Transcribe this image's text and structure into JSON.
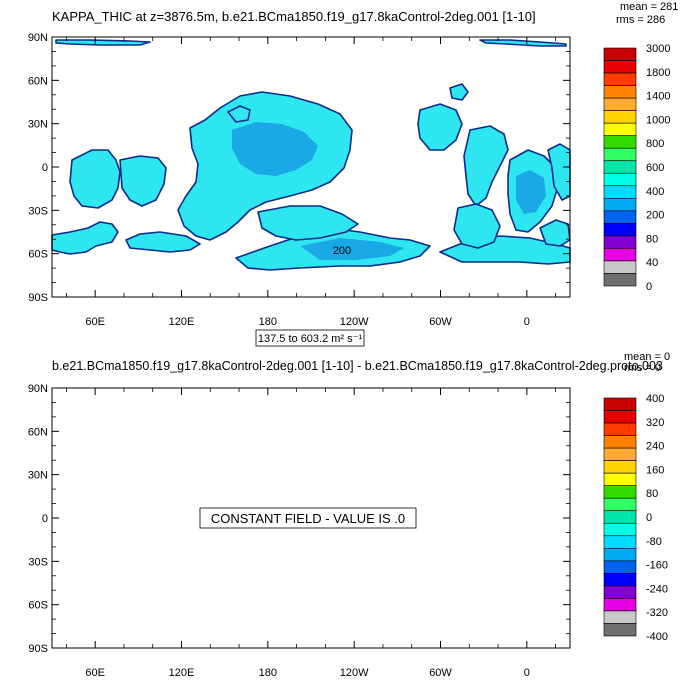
{
  "chart_data": [
    {
      "type": "heatmap",
      "title": "KAPPA_THIC at z=3876.5m, b.e21.BCma1850.f19_g17.8kaControl-2deg.001 [1-10]",
      "stats": {
        "mean": "mean = 281",
        "rms": "rms = 286"
      },
      "y_ticks": [
        "90N",
        "60N",
        "30N",
        "0",
        "30S",
        "60S",
        "90S"
      ],
      "x_ticks": [
        "60E",
        "120E",
        "180",
        "120W",
        "60W",
        "0"
      ],
      "range_label": "137.5 to 603.2 m² s⁻¹",
      "contour_label": "200",
      "colorbar": {
        "labels": [
          "3000",
          "1800",
          "1400",
          "1000",
          "800",
          "600",
          "400",
          "200",
          "80",
          "40",
          "0"
        ],
        "colors": [
          "#c80000",
          "#e60000",
          "#ff3c00",
          "#ff8200",
          "#ffaa32",
          "#ffd200",
          "#ffff00",
          "#32dc00",
          "#32ff64",
          "#00e6aa",
          "#00ffe6",
          "#00dcff",
          "#00aaf0",
          "#0064f0",
          "#0000ff",
          "#8200d2",
          "#e600e6",
          "#c8c8c8",
          "#6e6e6e"
        ]
      }
    },
    {
      "type": "heatmap",
      "title": "b.e21.BCma1850.f19_g17.8kaControl-2deg.001 [1-10] - b.e21.BCma1850.f19_g17.8kaControl-2deg.proto.003",
      "stats": {
        "mean": "mean = 0",
        "rms": "rms = 0"
      },
      "y_ticks": [
        "90N",
        "60N",
        "30N",
        "0",
        "30S",
        "60S",
        "90S"
      ],
      "x_ticks": [
        "60E",
        "120E",
        "180",
        "120W",
        "60W",
        "0"
      ],
      "constant_label": "CONSTANT FIELD - VALUE IS .0",
      "colorbar": {
        "labels": [
          "400",
          "320",
          "240",
          "160",
          "80",
          "0",
          "-80",
          "-160",
          "-240",
          "-320",
          "-400"
        ],
        "colors": [
          "#c80000",
          "#e60000",
          "#ff3c00",
          "#ff8200",
          "#ffaa32",
          "#ffd200",
          "#ffff00",
          "#32dc00",
          "#32ff64",
          "#00e6aa",
          "#00ffe6",
          "#00dcff",
          "#00aaf0",
          "#0064f0",
          "#0000ff",
          "#8200d2",
          "#e600e6",
          "#c8c8c8",
          "#6e6e6e"
        ]
      }
    }
  ]
}
